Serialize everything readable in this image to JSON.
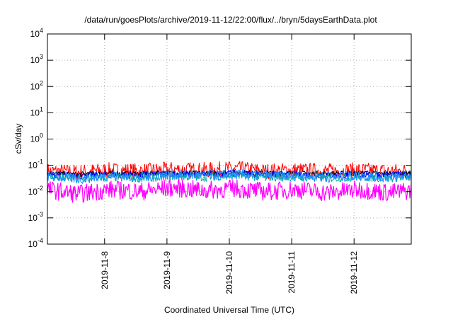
{
  "chart_data": {
    "type": "line",
    "title": "/data/run/goesPlots/archive/2019-11-12/22:00/flux/../bryn/5daysEarthData.plot",
    "xlabel": "Coordinated Universal Time (UTC)",
    "ylabel": "cSv/day",
    "y_scale": "log",
    "ylim": [
      0.0001,
      10000
    ],
    "y_ticks": [
      {
        "value": 10000,
        "base": "10",
        "exp": "4"
      },
      {
        "value": 1000,
        "base": "10",
        "exp": "3"
      },
      {
        "value": 100,
        "base": "10",
        "exp": "2"
      },
      {
        "value": 10,
        "base": "10",
        "exp": "1"
      },
      {
        "value": 1,
        "base": "10",
        "exp": "0"
      },
      {
        "value": 0.1,
        "base": "10",
        "exp": "-1"
      },
      {
        "value": 0.01,
        "base": "10",
        "exp": "-2"
      },
      {
        "value": 0.001,
        "base": "10",
        "exp": "-3"
      },
      {
        "value": 0.0001,
        "base": "10",
        "exp": "-4"
      }
    ],
    "xlim": [
      "2019-11-07 02:00",
      "2019-11-12 22:00"
    ],
    "x_ticks": [
      "2019-11-8",
      "2019-11-9",
      "2019-11-10",
      "2019-11-11",
      "2019-11-12"
    ],
    "x_tick_dates": [
      "2019-11-08 00:00",
      "2019-11-09 00:00",
      "2019-11-10 00:00",
      "2019-11-11 00:00",
      "2019-11-12 00:00"
    ],
    "grid": true,
    "x_sample_hours": [
      0,
      12,
      24,
      36,
      48,
      60,
      72,
      84,
      96,
      108,
      120,
      132,
      140
    ],
    "series": [
      {
        "color": "#ff0000",
        "values": [
          0.06,
          0.055,
          0.065,
          0.06,
          0.07,
          0.065,
          0.075,
          0.06,
          0.065,
          0.06,
          0.065,
          0.06,
          0.06
        ]
      },
      {
        "color": "#000000",
        "values": [
          0.05,
          0.045,
          0.05,
          0.048,
          0.052,
          0.05,
          0.055,
          0.05,
          0.05,
          0.048,
          0.05,
          0.048,
          0.05
        ]
      },
      {
        "color": "#0000ff",
        "values": [
          0.045,
          0.04,
          0.045,
          0.042,
          0.048,
          0.045,
          0.05,
          0.045,
          0.045,
          0.043,
          0.045,
          0.043,
          0.045
        ]
      },
      {
        "color": "#00aaaa",
        "values": [
          0.035,
          0.03,
          0.035,
          0.032,
          0.038,
          0.035,
          0.04,
          0.035,
          0.035,
          0.033,
          0.035,
          0.033,
          0.035
        ]
      },
      {
        "color": "#1e90ff",
        "values": [
          0.04,
          0.03,
          0.04,
          0.035,
          0.045,
          0.04,
          0.045,
          0.04,
          0.04,
          0.035,
          0.04,
          0.035,
          0.04
        ]
      },
      {
        "color": "#ff00ff",
        "values": [
          0.012,
          0.008,
          0.012,
          0.01,
          0.014,
          0.011,
          0.013,
          0.01,
          0.012,
          0.009,
          0.012,
          0.009,
          0.011
        ]
      }
    ]
  }
}
